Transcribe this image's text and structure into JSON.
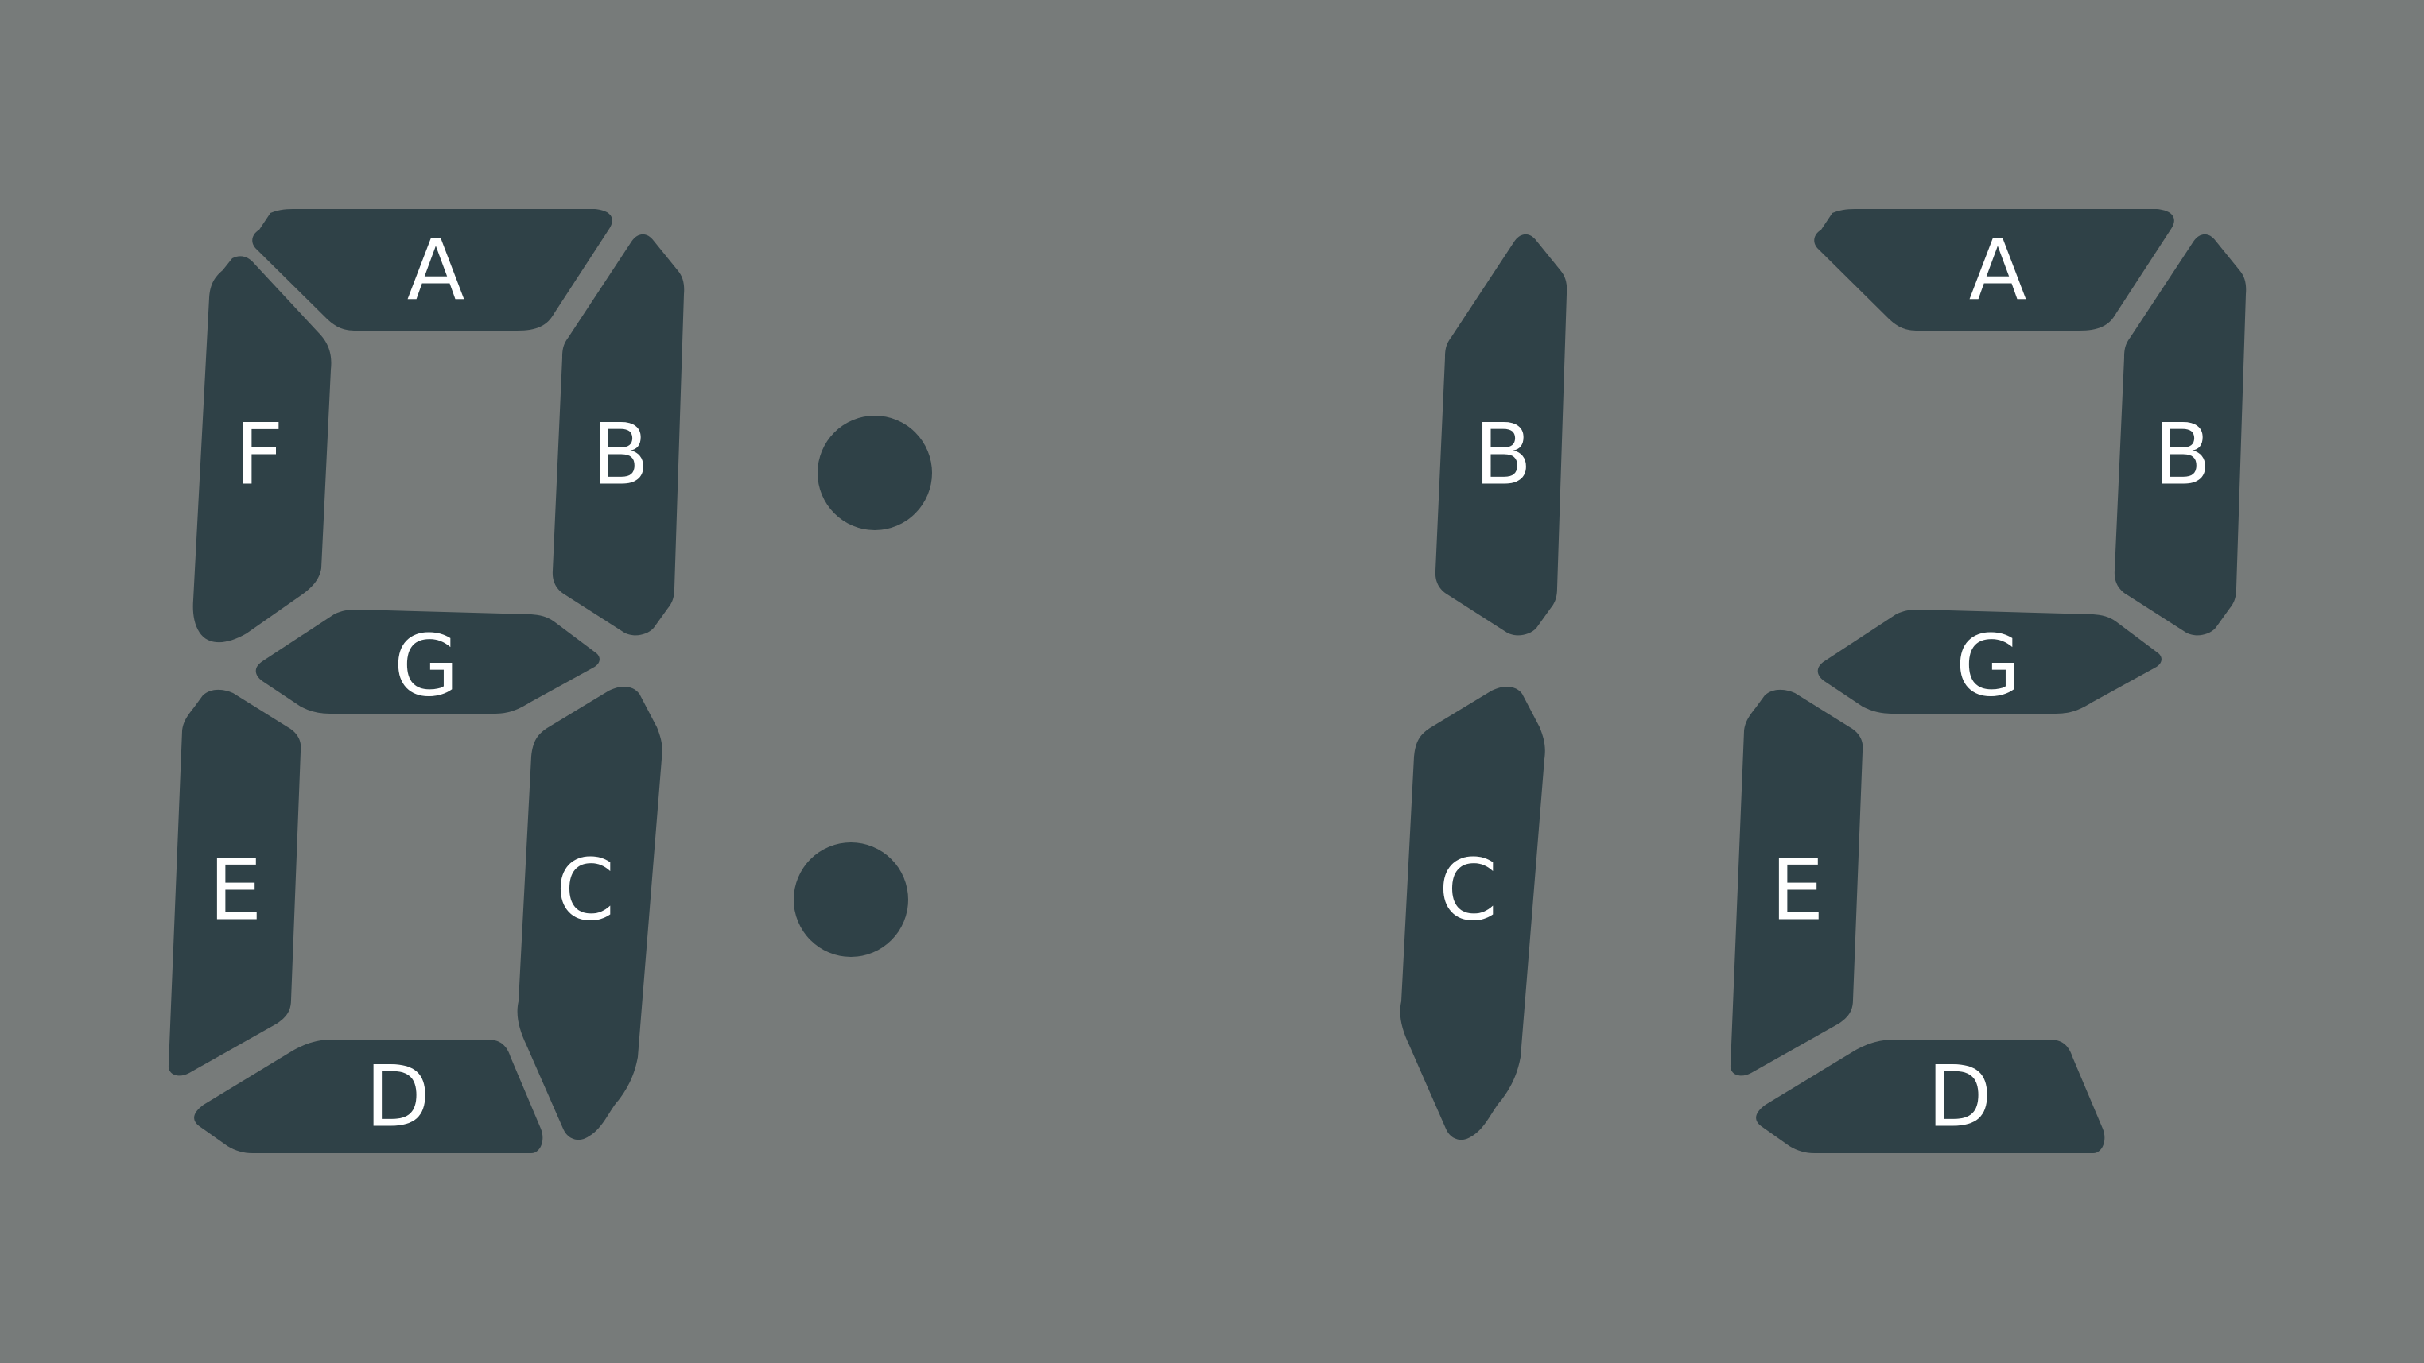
{
  "display": {
    "digits": [
      {
        "name": "digit-left",
        "segments": {
          "a": "A",
          "b": "B",
          "c": "C",
          "d": "D",
          "e": "E",
          "f": "F",
          "g": "G"
        }
      },
      {
        "name": "digit-middle",
        "segments": {
          "b": "B",
          "c": "C"
        }
      },
      {
        "name": "digit-right",
        "segments": {
          "a": "A",
          "b": "B",
          "g": "G",
          "e": "E",
          "d": "D"
        }
      }
    ],
    "colon_dots": 2
  },
  "colors": {
    "background": "#777b7a",
    "segment": "#2f4147",
    "label": "#ffffff"
  }
}
